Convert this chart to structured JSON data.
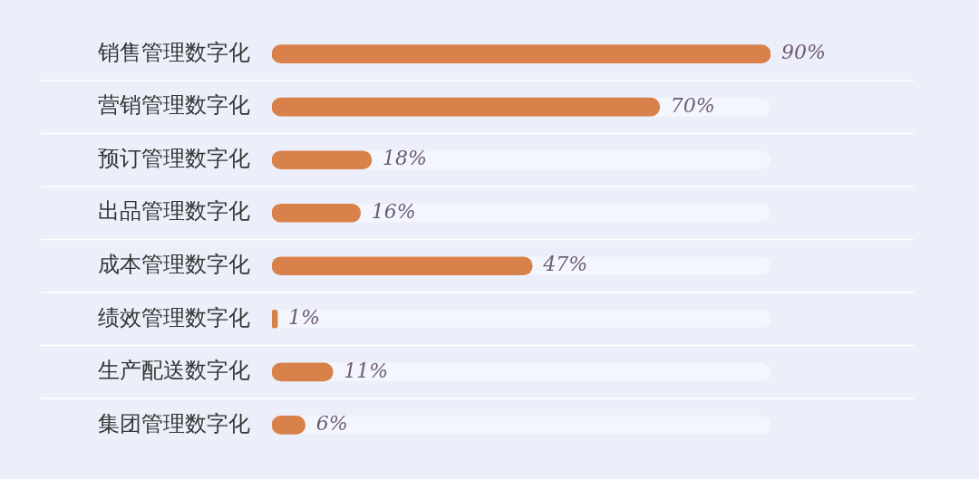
{
  "chart_data": {
    "type": "bar",
    "orientation": "horizontal",
    "categories": [
      "销售管理数字化",
      "营销管理数字化",
      "预订管理数字化",
      "出品管理数字化",
      "成本管理数字化",
      "绩效管理数字化",
      "生产配送数字化",
      "集团管理数字化"
    ],
    "values": [
      90,
      70,
      18,
      16,
      47,
      1,
      11,
      6
    ],
    "value_labels": [
      "90%",
      "70%",
      "18%",
      "16%",
      "47%",
      "1%",
      "11%",
      "6%"
    ],
    "color": "#d9814a",
    "tick_labels": "y",
    "grid": "y",
    "legend": false
  }
}
